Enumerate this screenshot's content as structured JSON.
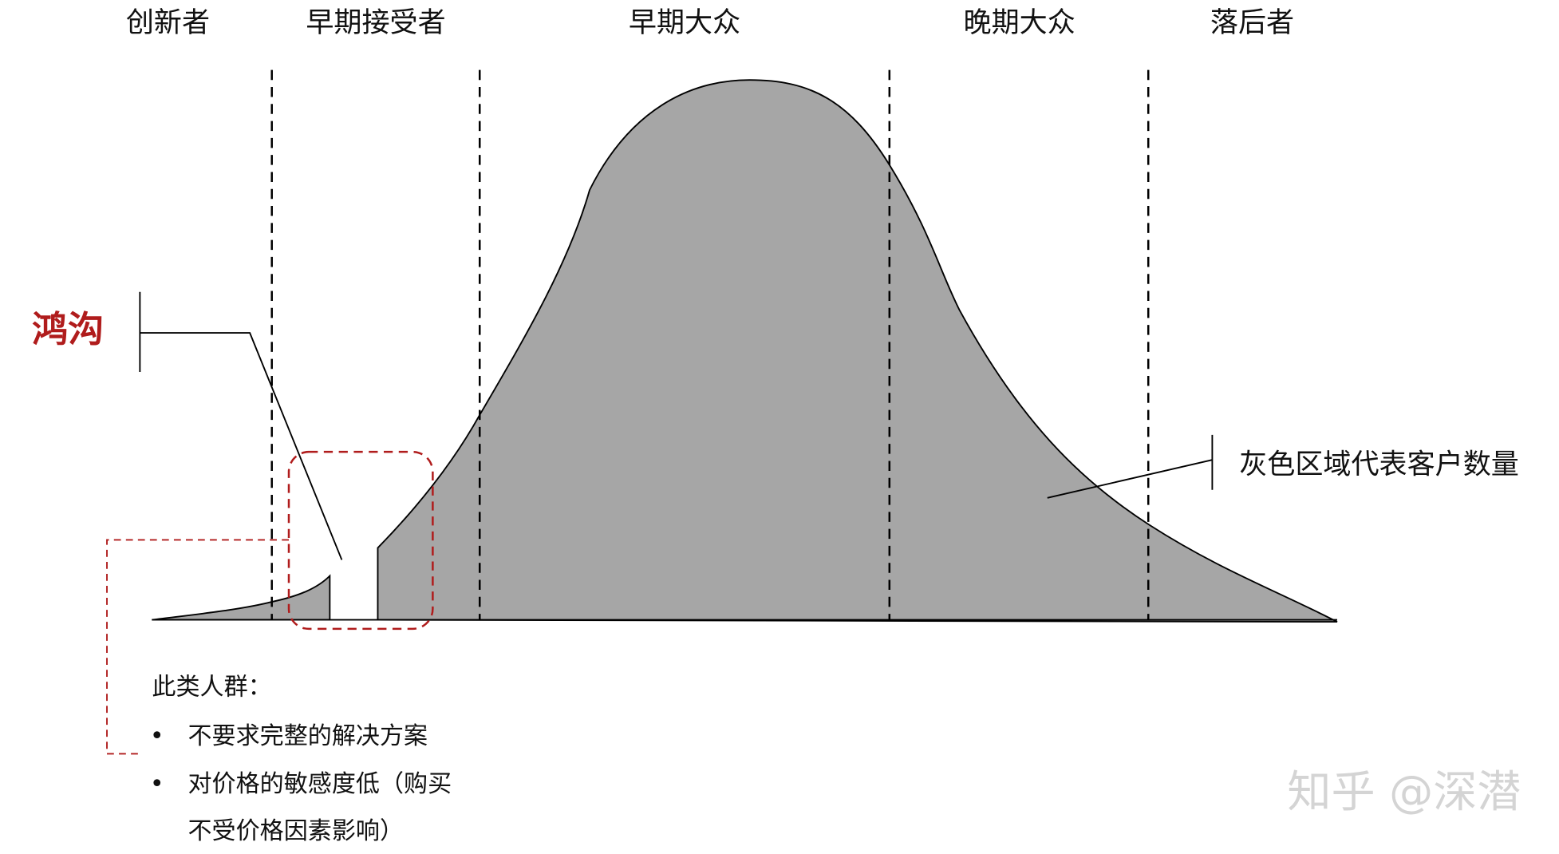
{
  "segments": [
    "创新者",
    "早期接受者",
    "早期大众",
    "晚期大众",
    "落后者"
  ],
  "chasm": "鸿沟",
  "annotation": "灰色区域代表客户数量",
  "note": {
    "title": "此类人群：",
    "items": [
      "不要求完整的解决方案",
      "对价格的敏感度低（购买不受价格因素影响）"
    ]
  },
  "watermark": "知乎 @深潜"
}
